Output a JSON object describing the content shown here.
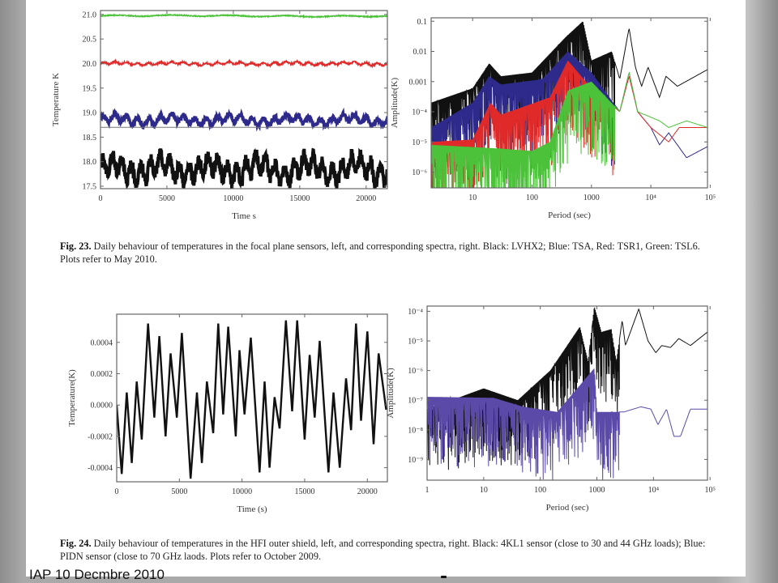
{
  "slide": {
    "footer_text": "IAP 10 Decmbre 2010"
  },
  "figures": {
    "fig23": {
      "caption_label": "Fig. 23.",
      "caption_text": " Daily behaviour of temperatures in the focal plane sensors, left, and corresponding spectra, right. Black: LVHX2; Blue: TSA, Red: TSR1, Green: TSL6. Plots refer to May 2010."
    },
    "fig24": {
      "caption_label": "Fig. 24.",
      "caption_text": " Daily behaviour of temperatures in the HFI outer shield, left, and corresponding spectra, right. Black: 4KL1 sensor (close to 30 and 44 GHz loads); Blue: PIDN sensor (close to 70 GHz laods. Plots refer to October 2009."
    }
  },
  "colors": {
    "black": "#111111",
    "blue": "#2e2a8c",
    "red": "#e02a2a",
    "green": "#4cc23a",
    "purple": "#5b4aa8"
  },
  "chart_data": [
    {
      "id": "fig23-left",
      "type": "line",
      "title": "",
      "xlabel": "Time  s",
      "ylabel": "Temperature K",
      "xlim": [
        0,
        21600
      ],
      "ylim": [
        17.45,
        21.08
      ],
      "xticks": [
        0,
        5000,
        10000,
        15000,
        20000
      ],
      "xtick_labels": [
        "0",
        "5000",
        "10000",
        "15000",
        "20000"
      ],
      "yticks": [
        17.5,
        18.0,
        18.5,
        19.0,
        19.5,
        20.0,
        20.5,
        21.0
      ],
      "ytick_labels": [
        "17.5",
        "18.0",
        "18.5",
        "19.0",
        "19.5",
        "20.0",
        "20.5",
        "21.0"
      ],
      "hline": 18.7,
      "series": [
        {
          "name": "TSL6",
          "color": "green",
          "mean": 20.97,
          "amplitude": 0.02,
          "period_s": 4300
        },
        {
          "name": "TSR1",
          "color": "red",
          "mean": 20.0,
          "amplitude": 0.04,
          "period_s": 860
        },
        {
          "name": "TSA",
          "color": "blue",
          "mean": 18.85,
          "amplitude": 0.12,
          "period_s": 860
        },
        {
          "name": "LVHX2",
          "color": "black",
          "mean": 17.85,
          "amplitude": 0.3,
          "period_s": 720
        }
      ]
    },
    {
      "id": "fig23-right",
      "type": "line",
      "title": "",
      "xlabel": "Period (sec)",
      "ylabel": "Amplitude(K)",
      "xscale": "log",
      "yscale": "log",
      "xlim": [
        2,
        90000
      ],
      "ylim": [
        3e-07,
        0.13
      ],
      "xticks": [
        10,
        100,
        1000,
        10000,
        100000
      ],
      "xtick_labels": [
        "10",
        "100",
        "1000",
        "10⁴",
        "10⁵"
      ],
      "yticks": [
        1e-06,
        1e-05,
        0.0001,
        0.001,
        0.01,
        0.1
      ],
      "ytick_labels": [
        "10⁻⁶",
        "10⁻⁵",
        "10⁻⁴",
        "0.001",
        "0.01",
        "0.1"
      ],
      "series": [
        {
          "name": "LVHX2",
          "color": "black",
          "points": [
            [
              2,
              0.0002
            ],
            [
              10,
              0.0006
            ],
            [
              19,
              0.004
            ],
            [
              30,
              0.0015
            ],
            [
              100,
              0.002
            ],
            [
              370,
              0.03
            ],
            [
              720,
              0.1
            ],
            [
              1000,
              0.005
            ],
            [
              2200,
              0.01
            ],
            [
              3000,
              0.0012
            ],
            [
              4300,
              0.06
            ],
            [
              5500,
              0.003
            ],
            [
              7000,
              0.0007
            ],
            [
              9000,
              0.003
            ],
            [
              14000,
              0.0003
            ],
            [
              18000,
              0.0015
            ],
            [
              28000,
              0.0007
            ],
            [
              90000,
              0.0025
            ]
          ]
        },
        {
          "name": "TSA",
          "color": "blue",
          "points": [
            [
              2,
              3e-05
            ],
            [
              10,
              0.0002
            ],
            [
              19,
              0.0015
            ],
            [
              30,
              0.0008
            ],
            [
              150,
              0.0012
            ],
            [
              400,
              0.01
            ],
            [
              1000,
              0.002
            ],
            [
              3000,
              0.0001
            ],
            [
              4300,
              0.002
            ],
            [
              6000,
              0.0001
            ],
            [
              10000,
              3e-05
            ],
            [
              14000,
              8e-06
            ],
            [
              20000,
              2e-05
            ],
            [
              40000,
              3e-06
            ],
            [
              90000,
              7e-06
            ]
          ]
        },
        {
          "name": "TSR1",
          "color": "red",
          "points": [
            [
              2,
              1e-05
            ],
            [
              10,
              1.2e-05
            ],
            [
              20,
              0.0002
            ],
            [
              30,
              8e-05
            ],
            [
              200,
              0.0003
            ],
            [
              400,
              0.005
            ],
            [
              1000,
              0.0006
            ],
            [
              3000,
              0.0001
            ],
            [
              4300,
              0.0015
            ],
            [
              6000,
              0.0001
            ],
            [
              10000,
              3e-05
            ],
            [
              20000,
              1e-05
            ],
            [
              30000,
              3e-05
            ],
            [
              90000,
              3e-05
            ]
          ]
        },
        {
          "name": "TSL6",
          "color": "green",
          "points": [
            [
              2,
              8e-06
            ],
            [
              30,
              6e-06
            ],
            [
              100,
              5e-06
            ],
            [
              200,
              1e-05
            ],
            [
              400,
              0.0005
            ],
            [
              1000,
              0.001
            ],
            [
              3000,
              0.0001
            ],
            [
              4300,
              0.002
            ],
            [
              6000,
              0.0001
            ],
            [
              14000,
              5e-05
            ],
            [
              20000,
              3e-05
            ],
            [
              40000,
              5e-05
            ],
            [
              90000,
              3e-05
            ]
          ]
        }
      ]
    },
    {
      "id": "fig24-left",
      "type": "line",
      "title": "",
      "xlabel": "Time (s)",
      "ylabel": "Temperature(K)",
      "xlim": [
        0,
        21600
      ],
      "ylim": [
        -0.00049,
        0.00058
      ],
      "xticks": [
        0,
        5000,
        10000,
        15000,
        20000
      ],
      "xtick_labels": [
        "0",
        "5000",
        "10000",
        "15000",
        "20000"
      ],
      "yticks": [
        -0.0004,
        -0.0002,
        0.0,
        0.0002,
        0.0004
      ],
      "ytick_labels": [
        "-0.0004",
        "-0.0002",
        "0.0000",
        "0.0002",
        "0.0004"
      ],
      "series": [
        {
          "name": "4KL1",
          "color": "black",
          "points": [
            [
              0,
              0
            ],
            [
              400,
              -0.00044
            ],
            [
              800,
              8e-05
            ],
            [
              1200,
              -0.00037
            ],
            [
              1600,
              0.00015
            ],
            [
              2000,
              -0.00022
            ],
            [
              2500,
              0.00052
            ],
            [
              3000,
              -8e-05
            ],
            [
              3400,
              0.00044
            ],
            [
              3900,
              -0.0002
            ],
            [
              4300,
              0.00033
            ],
            [
              4800,
              -8e-05
            ],
            [
              5200,
              0.00046
            ],
            [
              5900,
              -0.00047
            ],
            [
              6400,
              8e-05
            ],
            [
              6800,
              -0.00037
            ],
            [
              7200,
              0.00015
            ],
            [
              7700,
              -0.00018
            ],
            [
              8100,
              0.00052
            ],
            [
              8500,
              -6e-05
            ],
            [
              8900,
              0.0005
            ],
            [
              9500,
              -0.0002
            ],
            [
              9800,
              0.00035
            ],
            [
              10200,
              -6e-05
            ],
            [
              10700,
              0.00043
            ],
            [
              11400,
              -0.00043
            ],
            [
              11800,
              0.00015
            ],
            [
              12200,
              -0.0004
            ],
            [
              12600,
              5e-05
            ],
            [
              13000,
              -0.00015
            ],
            [
              13500,
              0.00054
            ],
            [
              14000,
              -4e-05
            ],
            [
              14400,
              0.00054
            ],
            [
              15000,
              -0.00022
            ],
            [
              15400,
              0.00032
            ],
            [
              15800,
              -8e-05
            ],
            [
              16200,
              0.00041
            ],
            [
              16900,
              -0.00043
            ],
            [
              17300,
              8e-05
            ],
            [
              17800,
              -0.0004
            ],
            [
              18300,
              0.00017
            ],
            [
              18700,
              -0.00016
            ],
            [
              19100,
              0.00052
            ],
            [
              19500,
              -0.0001
            ],
            [
              20000,
              0.00047
            ],
            [
              20500,
              -0.00025
            ],
            [
              20900,
              0.00033
            ],
            [
              21500,
              -3e-05
            ]
          ]
        },
        {
          "name": "PIDN",
          "color": "purple",
          "mean": 0.0,
          "amplitude": 2e-05
        }
      ]
    },
    {
      "id": "fig24-right",
      "type": "line",
      "title": "",
      "xlabel": "Period (sec)",
      "ylabel": "Amplitude(K)",
      "xscale": "log",
      "yscale": "log",
      "xlim": [
        1,
        90000
      ],
      "ylim": [
        2e-10,
        0.00015
      ],
      "xticks": [
        1,
        10,
        100,
        1000,
        10000,
        100000
      ],
      "xtick_labels": [
        "1",
        "10",
        "100",
        "1000",
        "10⁴",
        "10⁵"
      ],
      "yticks": [
        1e-09,
        1e-08,
        1e-07,
        1e-06,
        1e-05,
        0.0001
      ],
      "ytick_labels": [
        "10⁻⁹",
        "10⁻⁸",
        "10⁻⁷",
        "10⁻⁶",
        "10⁻⁵",
        "10⁻⁴"
      ],
      "series": [
        {
          "name": "4KL1",
          "color": "black",
          "points": [
            [
              1,
              5e-08
            ],
            [
              10,
              2.5e-07
            ],
            [
              40,
              1e-07
            ],
            [
              150,
              1e-06
            ],
            [
              500,
              3e-05
            ],
            [
              700,
              2e-06
            ],
            [
              900,
              0.00015
            ],
            [
              1200,
              2e-05
            ],
            [
              1800,
              2.5e-05
            ],
            [
              2200,
              2e-06
            ],
            [
              2800,
              5e-05
            ],
            [
              3200,
              7e-06
            ],
            [
              5500,
              0.00012
            ],
            [
              8000,
              1e-05
            ],
            [
              11000,
              4e-06
            ],
            [
              14000,
              7e-06
            ],
            [
              20000,
              6e-06
            ],
            [
              28000,
              1.2e-05
            ],
            [
              45000,
              7e-06
            ],
            [
              90000,
              2e-05
            ]
          ]
        },
        {
          "name": "PIDN",
          "color": "purple",
          "points": [
            [
              1,
              1.3e-07
            ],
            [
              15,
              1.2e-07
            ],
            [
              50,
              6e-08
            ],
            [
              200,
              4e-08
            ],
            [
              900,
              1.2e-06
            ],
            [
              1000,
              4e-08
            ],
            [
              3000,
              4e-08
            ],
            [
              6000,
              6e-08
            ],
            [
              9000,
              5e-08
            ],
            [
              12000,
              1.5e-08
            ],
            [
              17000,
              5e-08
            ],
            [
              23000,
              6e-09
            ],
            [
              30000,
              6e-09
            ],
            [
              45000,
              5e-08
            ],
            [
              90000,
              5e-08
            ]
          ]
        }
      ]
    }
  ]
}
